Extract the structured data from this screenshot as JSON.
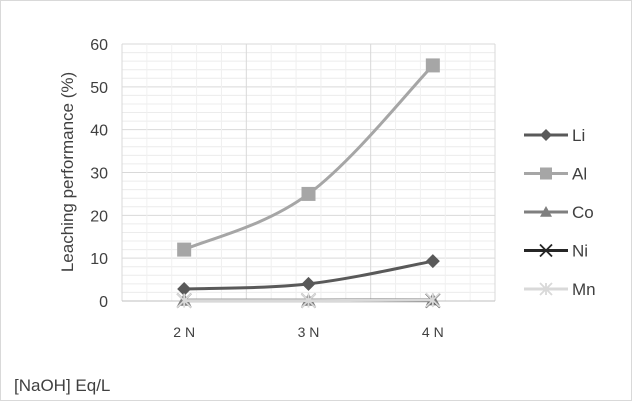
{
  "chart_data": {
    "type": "line",
    "categories": [
      "2 N",
      "3 N",
      "4  N"
    ],
    "ylabel": "Leaching performance (%)",
    "xlabel": "[NaOH] Eq/L",
    "ylim": [
      0,
      60
    ],
    "yticks": [
      0,
      10,
      20,
      30,
      40,
      50,
      60
    ],
    "grid": true,
    "legend_position": "right",
    "series": [
      {
        "name": "Li",
        "values": [
          2.8,
          4.0,
          9.3
        ],
        "color": "#595959",
        "marker": "diamond"
      },
      {
        "name": "Al",
        "values": [
          12.0,
          25.0,
          55.0
        ],
        "color": "#a6a6a6",
        "marker": "square"
      },
      {
        "name": "Co",
        "values": [
          0.2,
          0.2,
          0.3
        ],
        "color": "#7f7f7f",
        "marker": "triangle"
      },
      {
        "name": "Ni",
        "values": [
          0.1,
          0.1,
          0.1
        ],
        "color": "#262626",
        "marker": "x"
      },
      {
        "name": "Mn",
        "values": [
          0.1,
          0.1,
          0.2
        ],
        "color": "#d9d9d9",
        "marker": "star"
      }
    ]
  }
}
